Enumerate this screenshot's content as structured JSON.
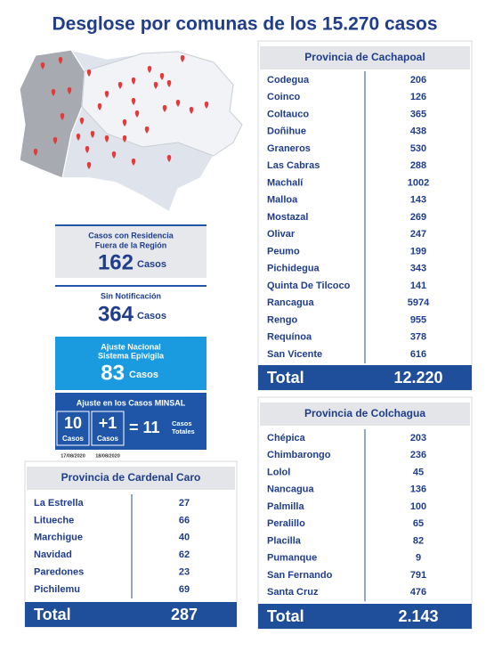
{
  "title": "Desglose por comunas de los 15.270 casos",
  "summary": {
    "fuera_region": {
      "label": [
        "Casos con Residencia",
        "Fuera de la Región"
      ],
      "value": "162",
      "unit": "Casos"
    },
    "sin_notificacion": {
      "label": "Sin Notificación",
      "value": "364",
      "unit": "Casos"
    },
    "ajuste_nacional": {
      "label": [
        "Ajuste Nacional",
        "Sistema Epivigila"
      ],
      "value": "83",
      "unit": "Casos"
    },
    "ajuste_minsal": {
      "label": "Ajuste en los Casos MINSAL",
      "before": {
        "value": "10",
        "unit": "Casos",
        "date": "17/08/2020"
      },
      "added": {
        "value": "+1",
        "unit": "Casos",
        "date": "18/08/2020"
      },
      "total": {
        "value": "= 11",
        "unit": [
          "Casos",
          "Totales"
        ]
      }
    }
  },
  "tables": {
    "cachapoal": {
      "title": "Provincia de Cachapoal",
      "rows": [
        [
          "Codegua",
          "206"
        ],
        [
          "Coinco",
          "126"
        ],
        [
          "Coltauco",
          "365"
        ],
        [
          "Doñihue",
          "438"
        ],
        [
          "Graneros",
          "530"
        ],
        [
          "Las Cabras",
          "288"
        ],
        [
          "Machalí",
          "1002"
        ],
        [
          "Malloa",
          "143"
        ],
        [
          "Mostazal",
          "269"
        ],
        [
          "Olivar",
          "247"
        ],
        [
          "Peumo",
          "199"
        ],
        [
          "Pichidegua",
          "343"
        ],
        [
          "Quinta De Tilcoco",
          "141"
        ],
        [
          "Rancagua",
          "5974"
        ],
        [
          "Rengo",
          "955"
        ],
        [
          "Requínoa",
          "378"
        ],
        [
          "San Vicente",
          "616"
        ]
      ],
      "total": [
        "Total",
        "12.220"
      ]
    },
    "colchagua": {
      "title": "Provincia de Colchagua",
      "rows": [
        [
          "Chépica",
          "203"
        ],
        [
          "Chimbarongo",
          "236"
        ],
        [
          "Lolol",
          "45"
        ],
        [
          "Nancagua",
          "136"
        ],
        [
          "Palmilla",
          "100"
        ],
        [
          "Peralillo",
          "65"
        ],
        [
          "Placilla",
          "82"
        ],
        [
          "Pumanque",
          "9"
        ],
        [
          "San Fernando",
          "791"
        ],
        [
          "Santa Cruz",
          "476"
        ]
      ],
      "total": [
        "Total",
        "2.143"
      ]
    },
    "cardenal_caro": {
      "title": "Provincia de Cardenal Caro",
      "rows": [
        [
          "La Estrella",
          "27"
        ],
        [
          "Litueche",
          "66"
        ],
        [
          "Marchigue",
          "40"
        ],
        [
          "Navidad",
          "62"
        ],
        [
          "Paredones",
          "23"
        ],
        [
          "Pichilemu",
          "69"
        ]
      ],
      "total": [
        "Total",
        "287"
      ]
    }
  }
}
